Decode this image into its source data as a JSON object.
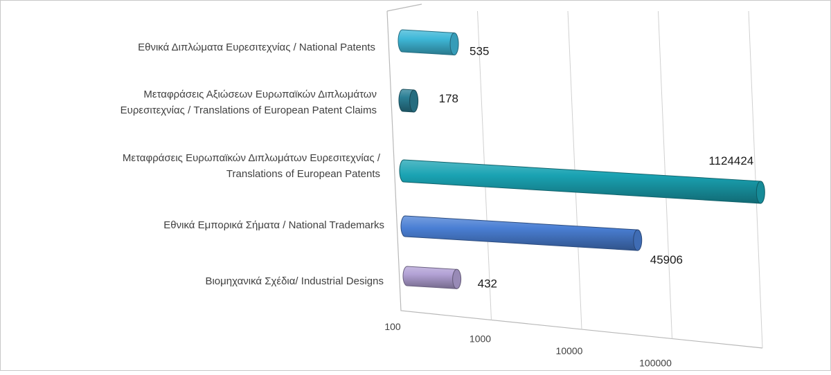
{
  "chart_data": {
    "type": "bar",
    "orientation": "horizontal",
    "style": "3d-cylinder",
    "x_scale": "log",
    "xlim": [
      100,
      1000000
    ],
    "x_ticks": [
      "100",
      "1000",
      "10000",
      "100000",
      "1000000"
    ],
    "grid": true,
    "legend": "none",
    "categories": [
      [
        "Εθνικά Διπλώματα Ευρεσιτεχνίας / National  Patents"
      ],
      [
        "Μεταφράσεις Αξιώσεων Ευρωπαϊκών Διπλωμάτων",
        "Ευρεσιτεχνίας / Translations of European Patent Claims"
      ],
      [
        "Μεταφράσεις Ευρωπαϊκών Διπλωμάτων Ευρεσιτεχνίας /",
        "Translations of European Patents"
      ],
      [
        "Εθνικά Εμπορικά Σήματα  / National Trademarks"
      ],
      [
        "Βιομηχανικά Σχέδια/ Industrial Designs"
      ]
    ],
    "values": [
      535,
      178,
      1124424,
      45906,
      432
    ],
    "value_labels": [
      "535",
      "178",
      "1124424",
      "45906",
      "432"
    ],
    "colors": [
      "#3fb8d8",
      "#2b7f95",
      "#1aa3b3",
      "#4a7fd4",
      "#b3a2d6"
    ]
  }
}
